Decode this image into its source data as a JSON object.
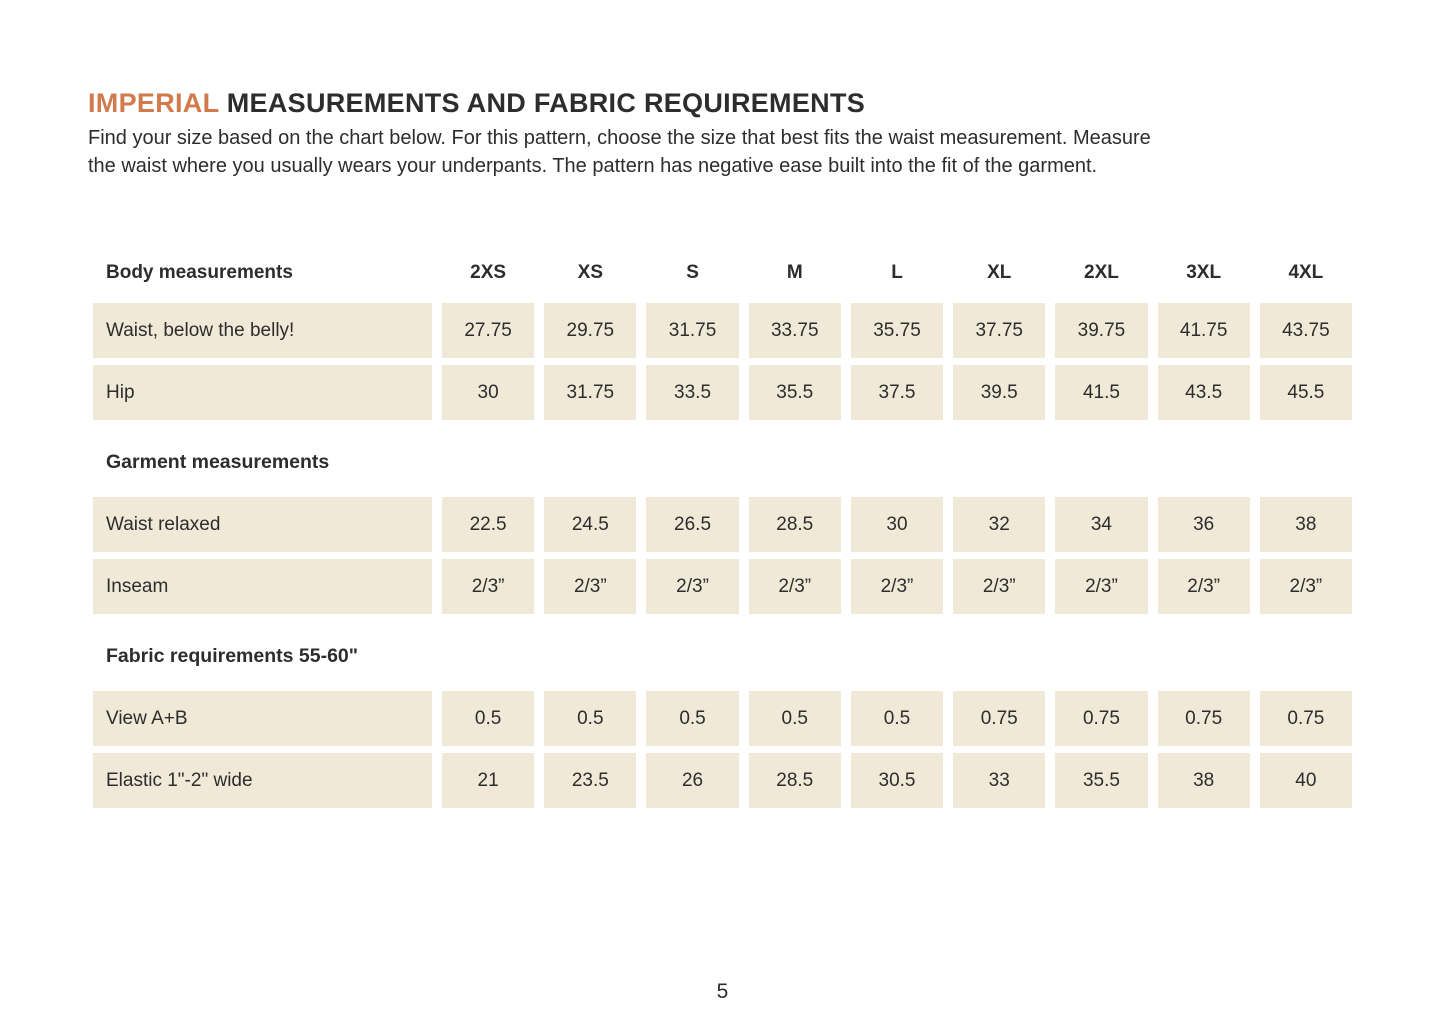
{
  "page": {
    "title_highlight": "IMPERIAL",
    "title_rest": "MEASUREMENTS AND FABRIC REQUIREMENTS",
    "intro_lines": [
      "Find your size based on the chart below. For this pattern, choose the size that best fits the waist measurement. Measure",
      "the waist where you usually wears your underpants. The pattern has negative ease built into the fit of the garment."
    ],
    "page_number": "5"
  },
  "colors": {
    "accent": "#d17a4b",
    "cell_background": "#f1e9d7",
    "text": "#2d2d2d"
  },
  "table": {
    "corner_label": "Body measurements",
    "sizes": [
      "2XS",
      "XS",
      "S",
      "M",
      "L",
      "XL",
      "2XL",
      "3XL",
      "4XL"
    ],
    "sections": [
      {
        "title": "",
        "rows": [
          {
            "label": "Waist, below the belly!",
            "values": [
              "27.75",
              "29.75",
              "31.75",
              "33.75",
              "35.75",
              "37.75",
              "39.75",
              "41.75",
              "43.75"
            ]
          },
          {
            "label": "Hip",
            "values": [
              "30",
              "31.75",
              "33.5",
              "35.5",
              "37.5",
              "39.5",
              "41.5",
              "43.5",
              "45.5"
            ]
          }
        ]
      },
      {
        "title": "Garment measurements",
        "rows": [
          {
            "label": "Waist relaxed",
            "values": [
              "22.5",
              "24.5",
              "26.5",
              "28.5",
              "30",
              "32",
              "34",
              "36",
              "38"
            ]
          },
          {
            "label": "Inseam",
            "values": [
              "2/3”",
              "2/3”",
              "2/3”",
              "2/3”",
              "2/3”",
              "2/3”",
              "2/3”",
              "2/3”",
              "2/3”"
            ]
          }
        ]
      },
      {
        "title": "Fabric requirements 55-60\"",
        "rows": [
          {
            "label": "View A+B",
            "values": [
              "0.5",
              "0.5",
              "0.5",
              "0.5",
              "0.5",
              "0.75",
              "0.75",
              "0.75",
              "0.75"
            ]
          },
          {
            "label": "Elastic 1\"-2\" wide",
            "values": [
              "21",
              "23.5",
              "26",
              "28.5",
              "30.5",
              "33",
              "35.5",
              "38",
              "40"
            ]
          }
        ]
      }
    ]
  }
}
